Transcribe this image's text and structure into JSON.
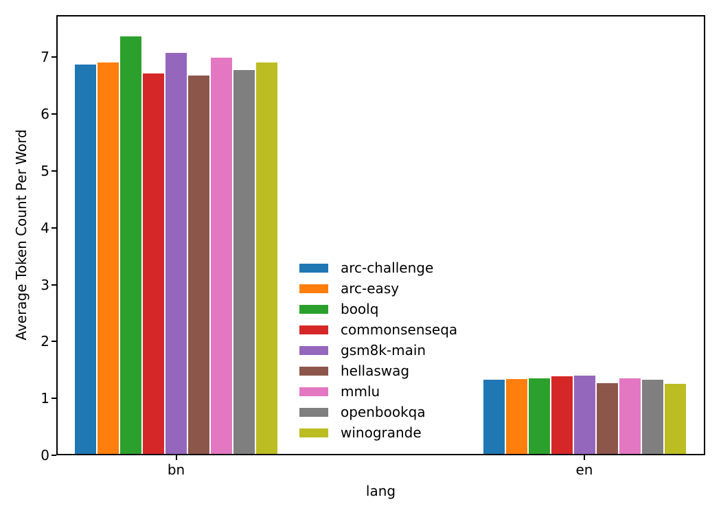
{
  "chart_data": {
    "type": "bar",
    "title": "",
    "xlabel": "lang",
    "ylabel": "Average Token Count Per Word",
    "categories": [
      "bn",
      "en"
    ],
    "series": [
      {
        "name": "arc-challenge",
        "color": "#1f77b4",
        "values": [
          6.87,
          1.33
        ]
      },
      {
        "name": "arc-easy",
        "color": "#ff7f0e",
        "values": [
          6.91,
          1.34
        ]
      },
      {
        "name": "boolq",
        "color": "#2ca02c",
        "values": [
          7.37,
          1.35
        ]
      },
      {
        "name": "commonsenseqa",
        "color": "#d62728",
        "values": [
          6.71,
          1.39
        ]
      },
      {
        "name": "gsm8k-main",
        "color": "#9467bd",
        "values": [
          7.07,
          1.4
        ]
      },
      {
        "name": "hellaswag",
        "color": "#8c564b",
        "values": [
          6.68,
          1.27
        ]
      },
      {
        "name": "mmlu",
        "color": "#e377c2",
        "values": [
          6.99,
          1.35
        ]
      },
      {
        "name": "openbookqa",
        "color": "#7f7f7f",
        "values": [
          6.78,
          1.33
        ]
      },
      {
        "name": "winogrande",
        "color": "#bcbd22",
        "values": [
          6.91,
          1.25
        ]
      }
    ],
    "ylim": [
      0,
      7.74
    ],
    "yticks": [
      0,
      1,
      2,
      3,
      4,
      5,
      6,
      7
    ],
    "grid": false,
    "legend_position": "center",
    "legend_frame": false,
    "axis_color": "#000000",
    "background_color": "#ffffff"
  }
}
